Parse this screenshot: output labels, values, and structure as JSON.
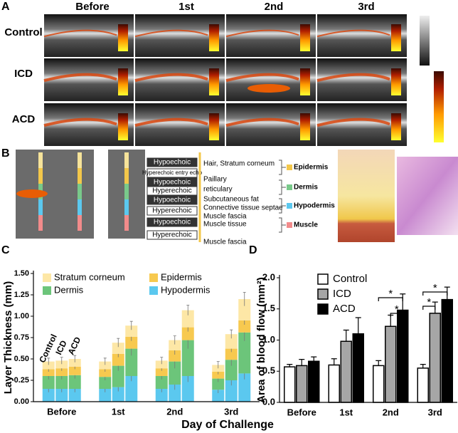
{
  "panel_a": {
    "label": "A",
    "columns": [
      "Before",
      "1st",
      "2nd",
      "3rd"
    ],
    "rows": [
      "Control",
      "ICD",
      "ACD"
    ]
  },
  "panel_b": {
    "label": "B",
    "echo_labels": [
      "Hypoechoic",
      "Hyperechoic entry echo",
      "Hypoechoic",
      "Hyperechoic",
      "Hypoechoic",
      "Hyperechoic",
      "Hypoechoic",
      "Hyperechoic"
    ],
    "structures": [
      "Hair, Stratum corneum",
      "Paillary",
      "reticulary",
      "Subcutaneous fat",
      "Connective tissue septae",
      "Muscle fascia",
      "Muscle tissue",
      "Muscle fascia"
    ],
    "layers": [
      "Epidermis",
      "Dermis",
      "Hypodermis",
      "Muscle"
    ]
  },
  "chart_data": [
    {
      "panel": "C",
      "type": "stacked_bar",
      "ylabel": "Layer Thickness (mm)",
      "xlabel": "Day of Challenge",
      "categories": [
        "Before",
        "1st",
        "2nd",
        "3rd"
      ],
      "groups": [
        "Control",
        "ICD",
        "ACD"
      ],
      "ylim": [
        0,
        1.5
      ],
      "yticks": [
        {
          "value": 0,
          "label": "0.00"
        },
        0.25,
        {
          "value": 0.5,
          "label": "0.50"
        },
        0.75,
        {
          "value": 1,
          "label": "1.00"
        },
        1.25,
        {
          "value": 1.5,
          "label": "1.50"
        }
      ],
      "series": [
        {
          "name": "Hypodermis",
          "color": "#5bc8ef",
          "values": [
            [
              0.15,
              0.15,
              0.15
            ],
            [
              0.15,
              0.17,
              0.3
            ],
            [
              0.15,
              0.2,
              0.3
            ],
            [
              0.14,
              0.25,
              0.33
            ]
          ],
          "errors": [
            [
              0.04,
              0.04,
              0.04
            ],
            [
              0.04,
              0.05,
              0.06
            ],
            [
              0.04,
              0.06,
              0.07
            ],
            [
              0.04,
              0.06,
              0.07
            ]
          ]
        },
        {
          "name": "Dermis",
          "color": "#6cc57a",
          "values": [
            [
              0.15,
              0.15,
              0.16
            ],
            [
              0.14,
              0.25,
              0.32
            ],
            [
              0.15,
              0.27,
              0.42
            ],
            [
              0.13,
              0.24,
              0.48
            ]
          ],
          "errors": [
            [
              0.04,
              0.04,
              0.04
            ],
            [
              0.04,
              0.06,
              0.08
            ],
            [
              0.04,
              0.08,
              0.1
            ],
            [
              0.04,
              0.07,
              0.1
            ]
          ]
        },
        {
          "name": "Epidermis",
          "color": "#f7c94f",
          "values": [
            [
              0.08,
              0.09,
              0.1
            ],
            [
              0.09,
              0.14,
              0.14
            ],
            [
              0.09,
              0.13,
              0.15
            ],
            [
              0.08,
              0.13,
              0.14
            ]
          ],
          "errors": [
            [
              0.03,
              0.03,
              0.03
            ],
            [
              0.03,
              0.04,
              0.05
            ],
            [
              0.03,
              0.05,
              0.05
            ],
            [
              0.03,
              0.04,
              0.05
            ]
          ]
        },
        {
          "name": "Stratum corneum",
          "color": "#fde7a6",
          "values": [
            [
              0.09,
              0.09,
              0.09
            ],
            [
              0.09,
              0.13,
              0.13
            ],
            [
              0.09,
              0.12,
              0.2
            ],
            [
              0.08,
              0.17,
              0.25
            ]
          ],
          "errors": [
            [
              0.04,
              0.04,
              0.04
            ],
            [
              0.04,
              0.05,
              0.05
            ],
            [
              0.04,
              0.05,
              0.06
            ],
            [
              0.04,
              0.05,
              0.08
            ]
          ]
        }
      ]
    },
    {
      "panel": "D",
      "type": "bar",
      "ylabel": "Area of blood flow (mm²)",
      "categories": [
        "Before",
        "1st",
        "2nd",
        "3rd"
      ],
      "ylim": [
        0,
        2
      ],
      "yticks": [
        {
          "value": 0,
          "label": "0.0"
        },
        0.5,
        {
          "value": 1,
          "label": "1.0"
        },
        1.5,
        {
          "value": 2,
          "label": "2.0"
        }
      ],
      "series": [
        {
          "name": "Control",
          "color": "#ffffff",
          "values": [
            0.57,
            0.6,
            0.59,
            0.55
          ],
          "errors": [
            0.04,
            0.1,
            0.08,
            0.06
          ]
        },
        {
          "name": "ICD",
          "color": "#a6a6a6",
          "values": [
            0.59,
            0.98,
            1.22,
            1.43
          ],
          "errors": [
            0.1,
            0.18,
            0.18,
            0.18
          ]
        },
        {
          "name": "ACD",
          "color": "#000000",
          "values": [
            0.66,
            1.1,
            1.48,
            1.65
          ],
          "errors": [
            0.07,
            0.26,
            0.26,
            0.2
          ]
        }
      ],
      "annotations": [
        "*",
        "*",
        "*",
        "*"
      ]
    }
  ]
}
